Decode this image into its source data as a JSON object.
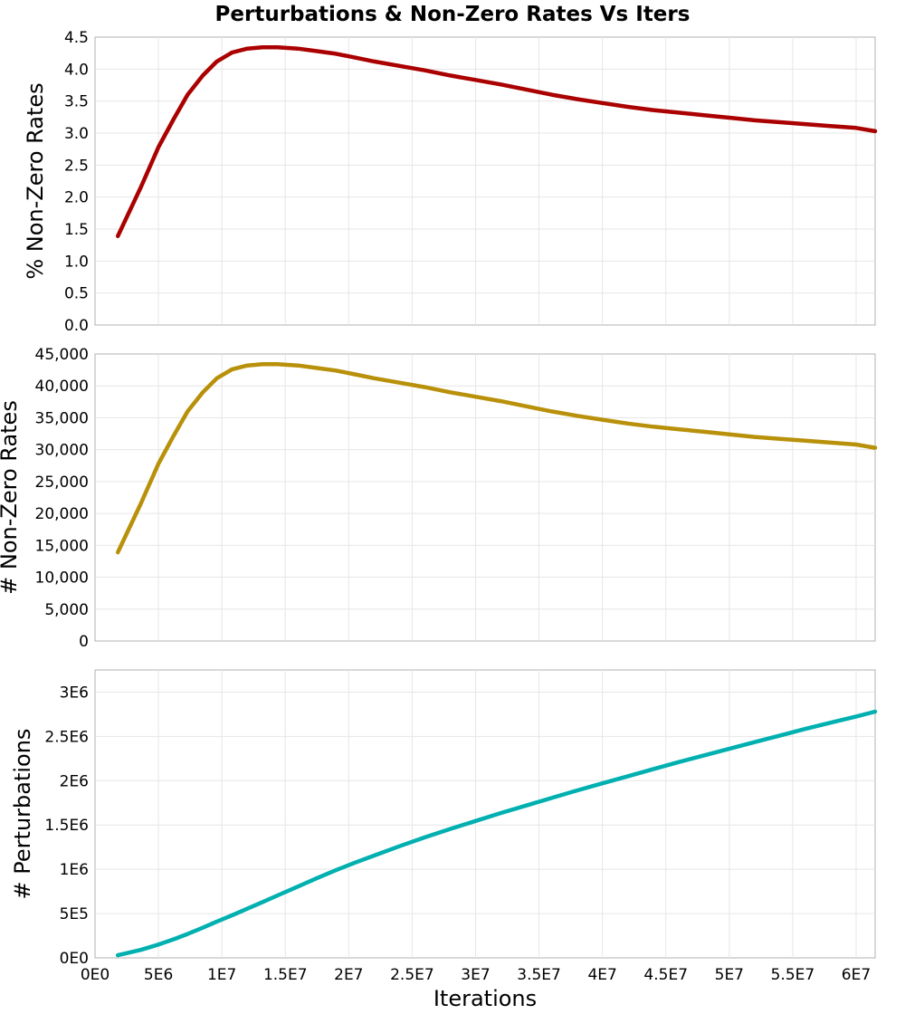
{
  "chart_data": {
    "type": "line",
    "title": "Perturbations & Non-Zero Rates Vs Iters",
    "xlabel": "Iterations",
    "xlim": [
      0,
      61500000
    ],
    "x_ticks": [
      0,
      5000000,
      10000000,
      15000000,
      20000000,
      25000000,
      30000000,
      35000000,
      40000000,
      45000000,
      50000000,
      55000000,
      60000000
    ],
    "x_tick_labels": [
      "0E0",
      "5E6",
      "1E7",
      "1.5E7",
      "2E7",
      "2.5E7",
      "3E7",
      "3.5E7",
      "4E7",
      "4.5E7",
      "5E7",
      "5.5E7",
      "6E7"
    ],
    "grid": true,
    "x": [
      1800000,
      3600000,
      5000000,
      6200000,
      7300000,
      8500000,
      9600000,
      10800000,
      12000000,
      13200000,
      14400000,
      16000000,
      17500000,
      19000000,
      20500000,
      22000000,
      24000000,
      26000000,
      28000000,
      30000000,
      32000000,
      34000000,
      36000000,
      38000000,
      40000000,
      42000000,
      44000000,
      46000000,
      48000000,
      50000000,
      52000000,
      54000000,
      56000000,
      58000000,
      60000000,
      61500000
    ],
    "panels": [
      {
        "ylabel": "% Non-Zero Rates",
        "ylim": [
          0,
          4.5
        ],
        "y_ticks": [
          0,
          0.5,
          1.0,
          1.5,
          2.0,
          2.5,
          3.0,
          3.5,
          4.0,
          4.5
        ],
        "y_tick_labels": [
          "0.0",
          "0.5",
          "1.0",
          "1.5",
          "2.0",
          "2.5",
          "3.0",
          "3.5",
          "4.0",
          "4.5"
        ],
        "color": "#aa0000",
        "values": [
          1.39,
          2.15,
          2.78,
          3.22,
          3.6,
          3.9,
          4.12,
          4.26,
          4.32,
          4.34,
          4.34,
          4.32,
          4.28,
          4.24,
          4.18,
          4.12,
          4.05,
          3.98,
          3.9,
          3.83,
          3.76,
          3.68,
          3.6,
          3.53,
          3.47,
          3.41,
          3.36,
          3.32,
          3.28,
          3.24,
          3.2,
          3.17,
          3.14,
          3.11,
          3.08,
          3.03
        ]
      },
      {
        "ylabel": "# Non-Zero Rates",
        "ylim": [
          0,
          45000
        ],
        "y_ticks": [
          0,
          5000,
          10000,
          15000,
          20000,
          25000,
          30000,
          35000,
          40000,
          45000
        ],
        "y_tick_labels": [
          "0",
          "5,000",
          "10,000",
          "15,000",
          "20,000",
          "25,000",
          "30,000",
          "35,000",
          "40,000",
          "45,000"
        ],
        "color": "#b8900a",
        "values": [
          13900,
          21500,
          27800,
          32200,
          36000,
          39000,
          41200,
          42600,
          43200,
          43400,
          43400,
          43200,
          42800,
          42400,
          41800,
          41200,
          40500,
          39800,
          39000,
          38300,
          37600,
          36800,
          36000,
          35300,
          34700,
          34100,
          33600,
          33200,
          32800,
          32400,
          32000,
          31700,
          31400,
          31100,
          30800,
          30300
        ]
      },
      {
        "ylabel": "# Perturbations",
        "ylim": [
          0,
          3250000
        ],
        "y_ticks": [
          0,
          500000,
          1000000,
          1500000,
          2000000,
          2500000,
          3000000
        ],
        "y_tick_labels": [
          "0E0",
          "5E5",
          "1E6",
          "1.5E6",
          "2E6",
          "2.5E6",
          "3E6"
        ],
        "color": "#00b0b0",
        "values": [
          30000,
          90000,
          150000,
          210000,
          270000,
          340000,
          410000,
          480000,
          555000,
          630000,
          705000,
          805000,
          900000,
          990000,
          1075000,
          1155000,
          1260000,
          1360000,
          1455000,
          1545000,
          1635000,
          1720000,
          1805000,
          1890000,
          1970000,
          2050000,
          2130000,
          2210000,
          2285000,
          2360000,
          2435000,
          2510000,
          2585000,
          2655000,
          2725000,
          2780000
        ]
      }
    ]
  }
}
